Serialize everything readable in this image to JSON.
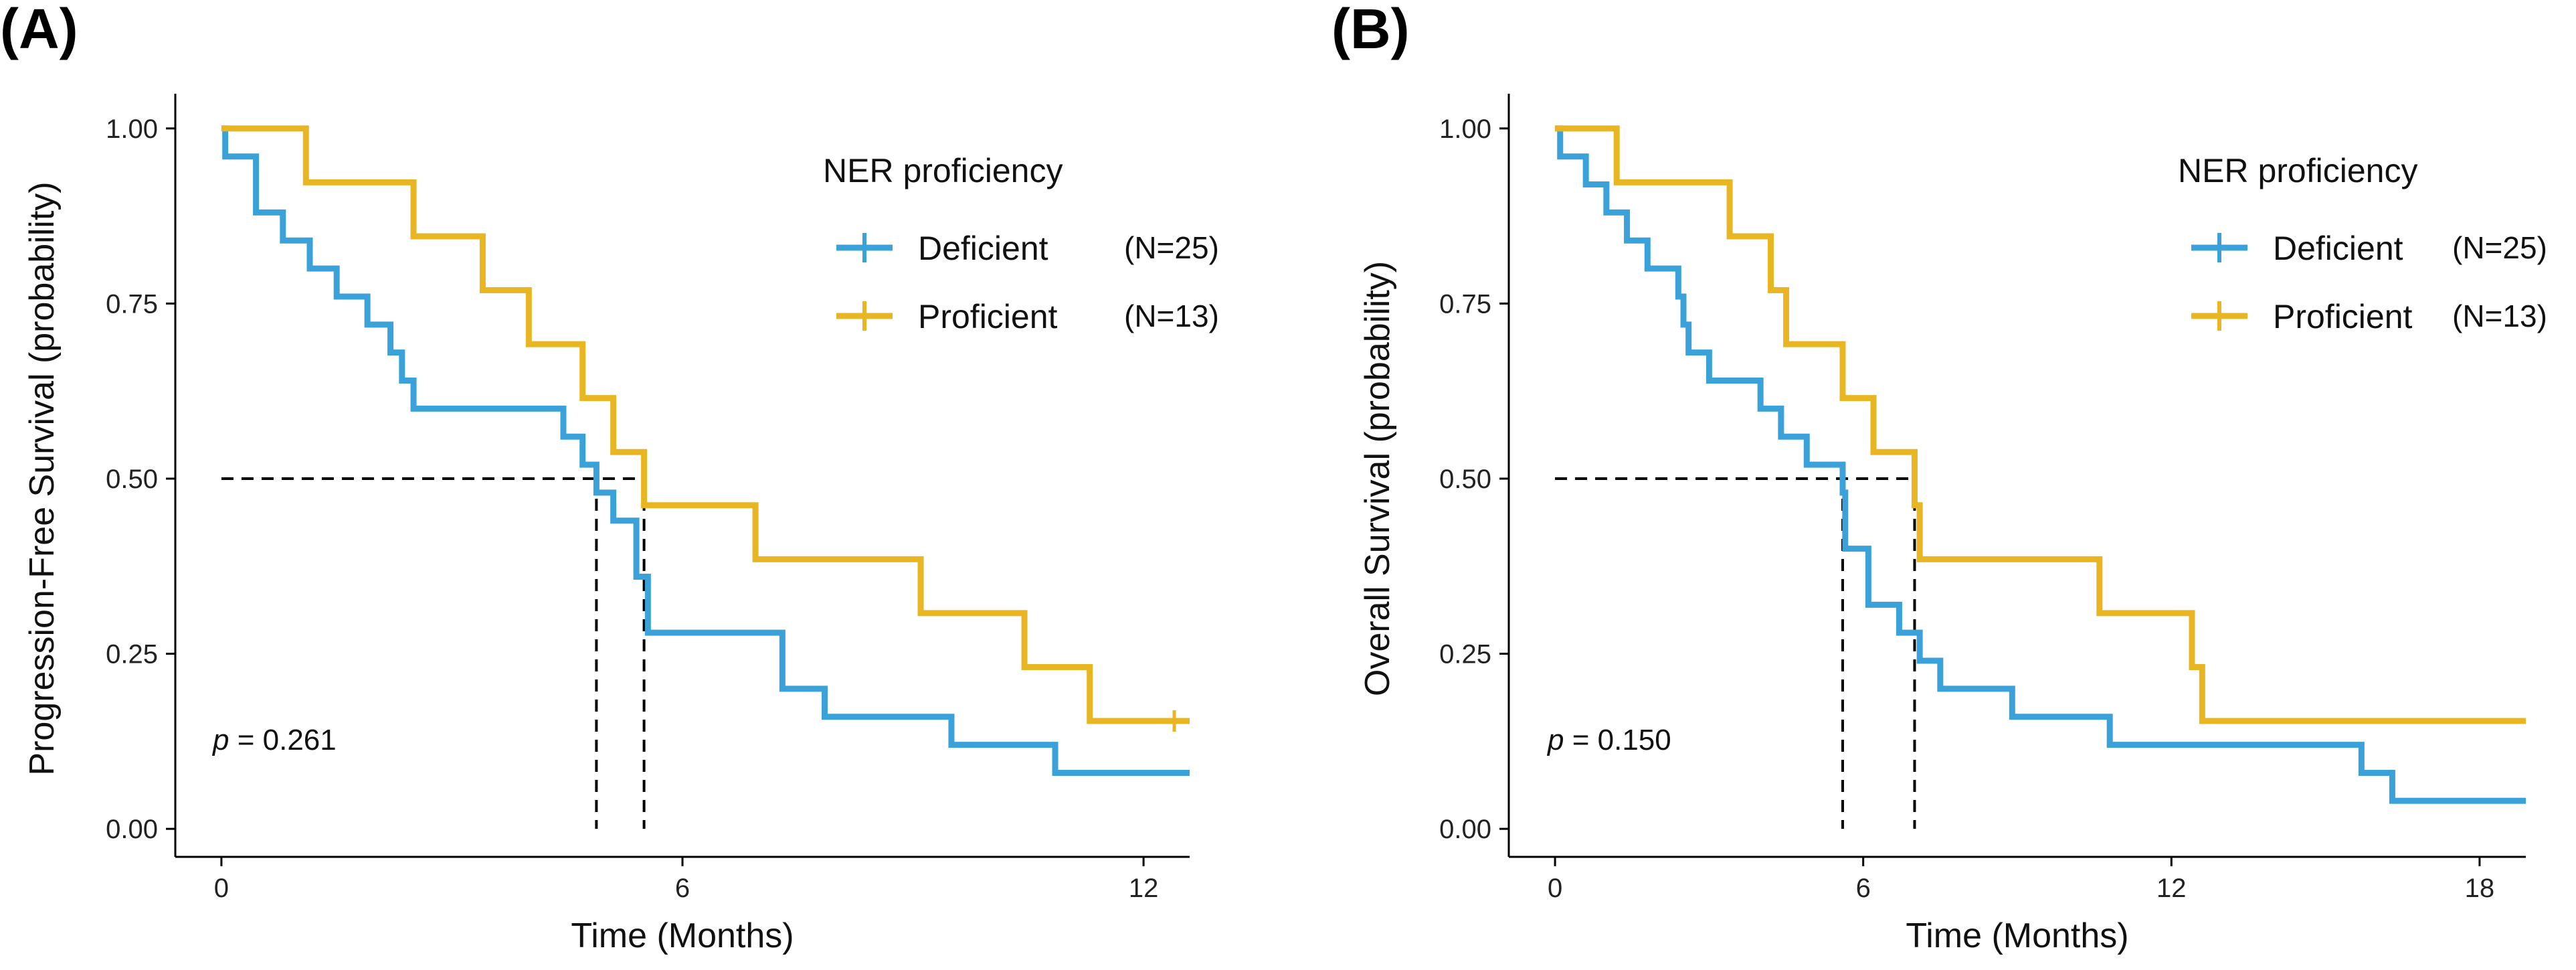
{
  "chart_data": [
    {
      "type": "line",
      "panel_label": "(A)",
      "xlabel": "Time (Months)",
      "ylabel": "Progression-Free Survival (probability)",
      "xlim": [
        -0.6,
        12.6
      ],
      "ylim": [
        -0.04,
        1.04
      ],
      "xticks": [
        0,
        6,
        12
      ],
      "xtick_labels": [
        "0",
        "6",
        "12"
      ],
      "yticks": [
        0,
        0.25,
        0.5,
        0.75,
        1.0
      ],
      "ytick_labels": [
        "0.00",
        "0.25",
        "0.50",
        "0.75",
        "1.00"
      ],
      "legend": {
        "title": "NER proficiency",
        "position": "top-right"
      },
      "pvalue": {
        "label": "p",
        "text": " = 0.261"
      },
      "median_lines": {
        "y": 0.5,
        "x": [
          4.88,
          5.5
        ]
      },
      "series": [
        {
          "name": "Deficient",
          "n_label": "(N=25)",
          "color": "#3AA2D9",
          "x": [
            0,
            0.05,
            0.45,
            0.8,
            1.15,
            1.5,
            1.9,
            2.2,
            2.35,
            2.5,
            4.45,
            4.7,
            4.88,
            5.1,
            5.4,
            5.55,
            7.3,
            7.85,
            9.5,
            10.85,
            12.6
          ],
          "y": [
            1.0,
            0.96,
            0.88,
            0.84,
            0.8,
            0.76,
            0.72,
            0.68,
            0.64,
            0.6,
            0.56,
            0.52,
            0.48,
            0.44,
            0.36,
            0.28,
            0.2,
            0.16,
            0.12,
            0.08,
            0.08
          ],
          "censor_x": []
        },
        {
          "name": "Proficient",
          "n_label": "(N=13)",
          "color": "#E8B523",
          "x": [
            0,
            1.1,
            2.5,
            3.4,
            4.0,
            4.7,
            5.1,
            5.5,
            6.95,
            9.1,
            10.45,
            11.3,
            12.6
          ],
          "y": [
            1.0,
            0.923,
            0.846,
            0.769,
            0.692,
            0.615,
            0.538,
            0.462,
            0.385,
            0.308,
            0.231,
            0.154,
            0.154
          ],
          "censor_x": [
            12.4
          ]
        }
      ]
    },
    {
      "type": "line",
      "panel_label": "(B)",
      "xlabel": "Time (Months)",
      "ylabel": "Overall Survival (probability)",
      "xlim": [
        -0.9,
        18.9
      ],
      "ylim": [
        -0.04,
        1.04
      ],
      "xticks": [
        0,
        6,
        12,
        18
      ],
      "xtick_labels": [
        "0",
        "6",
        "12",
        "18"
      ],
      "yticks": [
        0,
        0.25,
        0.5,
        0.75,
        1.0
      ],
      "ytick_labels": [
        "0.00",
        "0.25",
        "0.50",
        "0.75",
        "1.00"
      ],
      "legend": {
        "title": "NER proficiency",
        "position": "top-right"
      },
      "pvalue": {
        "label": "p",
        "text": " = 0.150"
      },
      "median_lines": {
        "y": 0.5,
        "x": [
          5.6,
          7.0
        ]
      },
      "series": [
        {
          "name": "Deficient",
          "n_label": "(N=25)",
          "color": "#3AA2D9",
          "x": [
            0,
            0.1,
            0.6,
            1.0,
            1.4,
            1.8,
            2.4,
            2.5,
            2.6,
            3.0,
            3.8,
            4.0,
            4.4,
            4.9,
            5.6,
            5.65,
            6.1,
            6.7,
            7.1,
            7.5,
            7.9,
            8.9,
            10.8,
            15.7,
            16.3,
            18.9
          ],
          "y": [
            1.0,
            0.96,
            0.92,
            0.88,
            0.84,
            0.8,
            0.76,
            0.72,
            0.68,
            0.64,
            0.64,
            0.6,
            0.56,
            0.52,
            0.48,
            0.4,
            0.32,
            0.28,
            0.24,
            0.2,
            0.2,
            0.16,
            0.12,
            0.08,
            0.04,
            0.04
          ],
          "censor_x": []
        },
        {
          "name": "Proficient",
          "n_label": "(N=13)",
          "color": "#E8B523",
          "x": [
            0,
            1.2,
            3.4,
            4.2,
            4.5,
            5.6,
            6.2,
            7.0,
            7.1,
            10.6,
            12.4,
            12.6,
            18.9
          ],
          "y": [
            1.0,
            0.923,
            0.846,
            0.769,
            0.692,
            0.615,
            0.538,
            0.462,
            0.385,
            0.308,
            0.231,
            0.154,
            0.154
          ],
          "censor_x": []
        }
      ]
    }
  ]
}
